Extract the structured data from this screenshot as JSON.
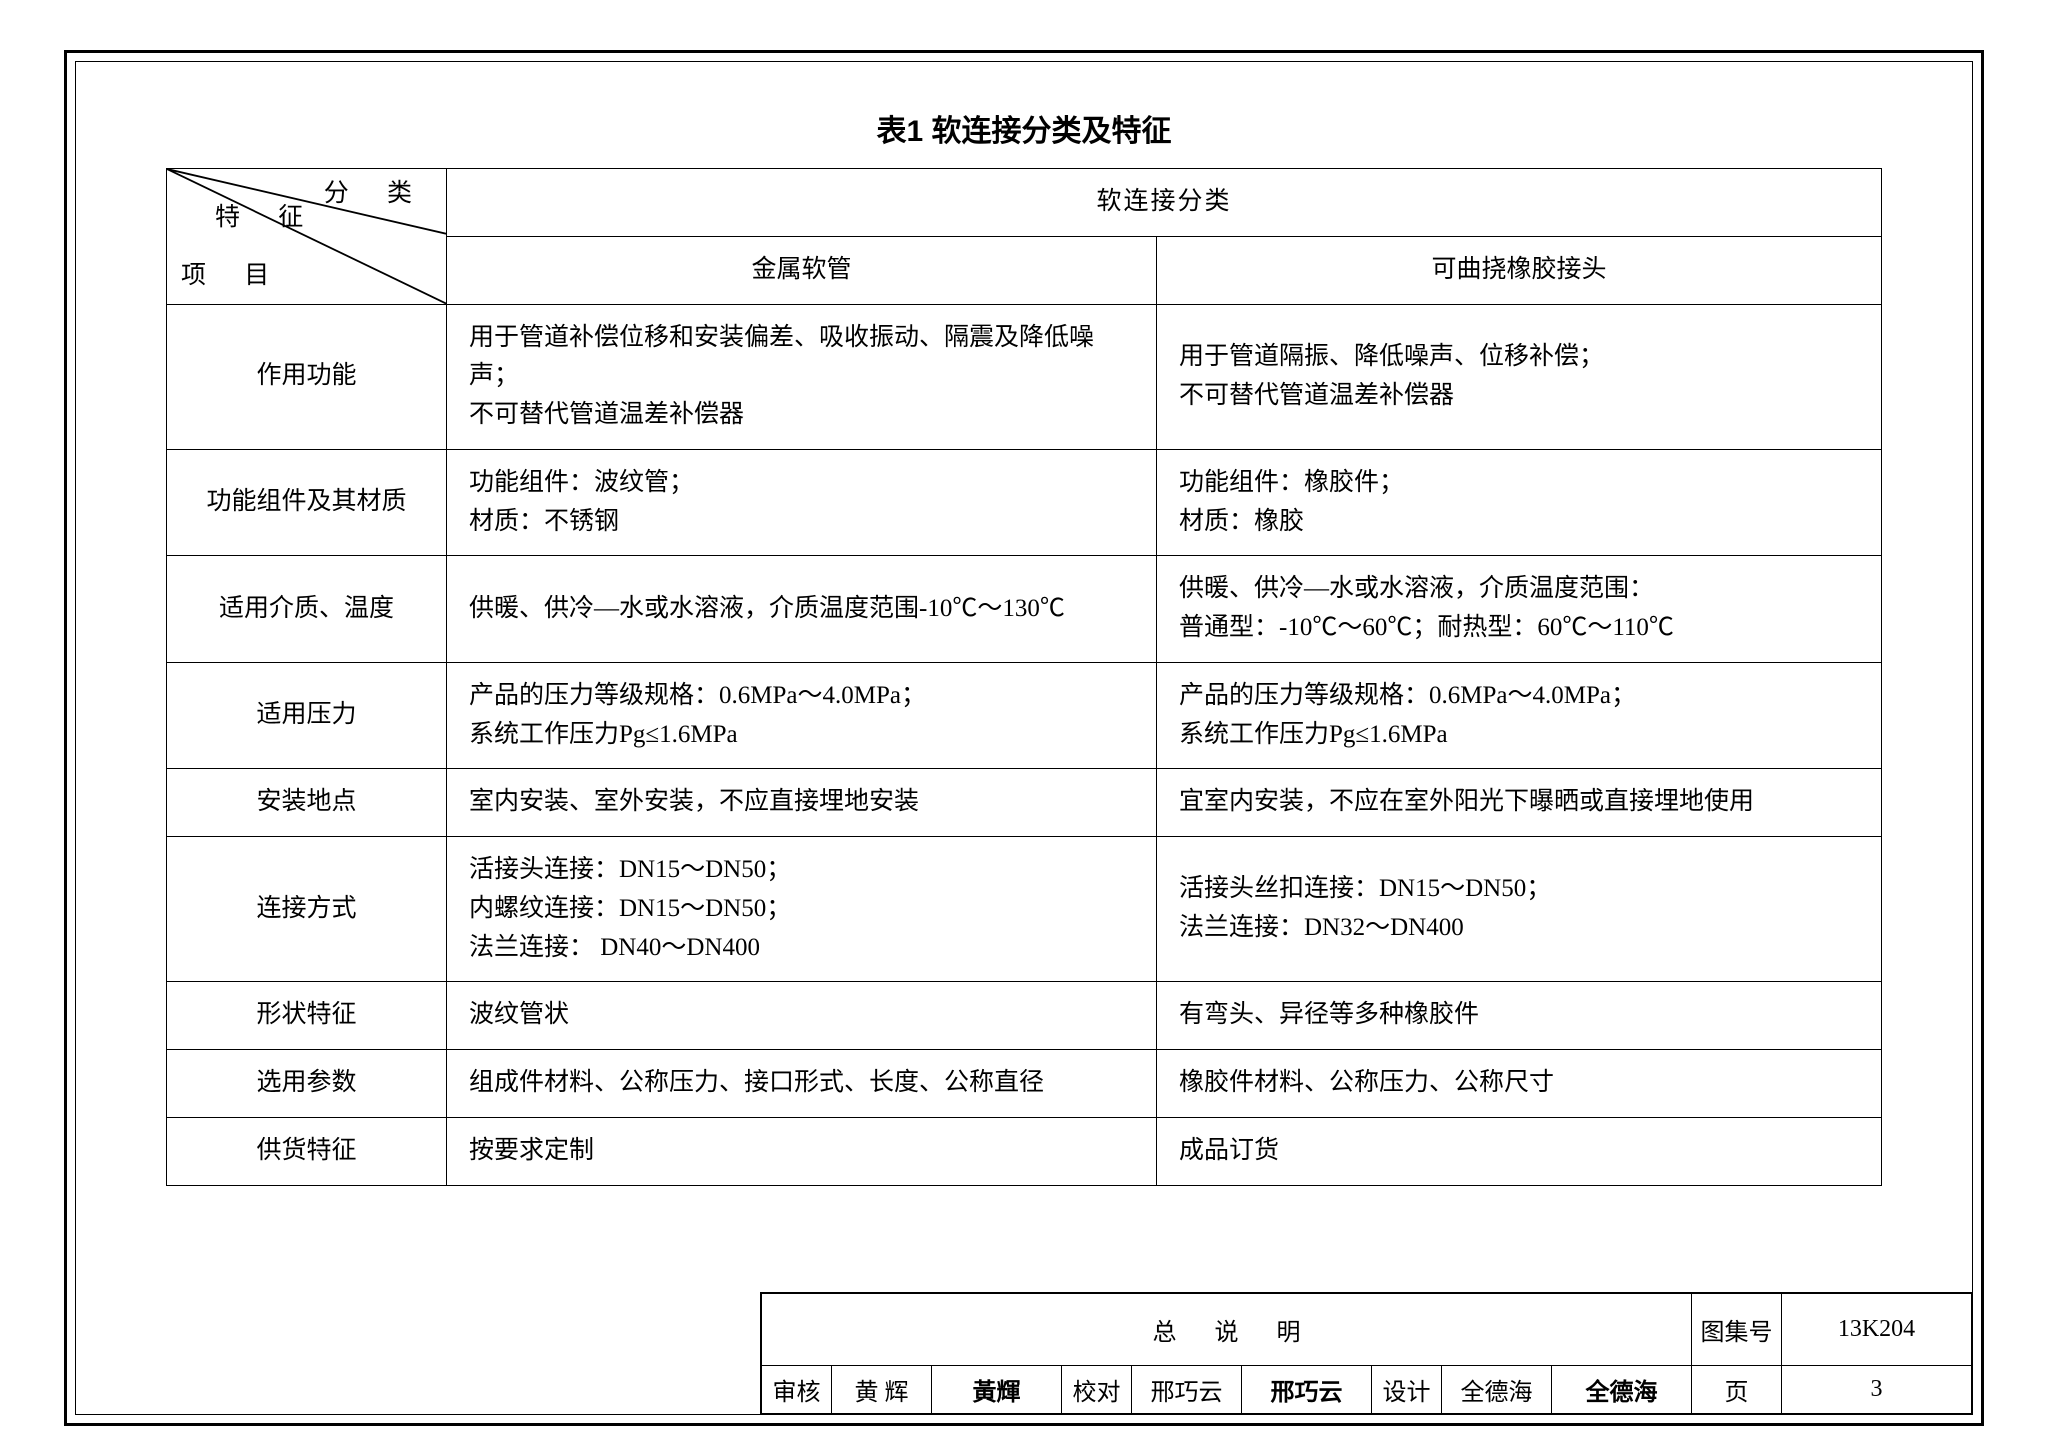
{
  "title": "表1  软连接分类及特征",
  "diagHeader": {
    "top": "分 类",
    "mid": "特 征",
    "bot": "项 目"
  },
  "catHeader": "软连接分类",
  "sub1": "金属软管",
  "sub2": "可曲挠橡胶接头",
  "rows": [
    {
      "label": "作用功能",
      "c1": "用于管道补偿位移和安装偏差、吸收振动、隔震及降低噪声；\n不可替代管道温差补偿器",
      "c2": "用于管道隔振、降低噪声、位移补偿；\n不可替代管道温差补偿器"
    },
    {
      "label": "功能组件及其材质",
      "c1": "功能组件：波纹管；\n材质：不锈钢",
      "c2": "功能组件：橡胶件；\n材质：橡胶"
    },
    {
      "label": "适用介质、温度",
      "c1": "供暖、供冷—水或水溶液，介质温度范围-10℃～130℃",
      "c2": "供暖、供冷—水或水溶液，介质温度范围：\n普通型：-10℃～60℃；耐热型：60℃～110℃"
    },
    {
      "label": "适用压力",
      "c1": "产品的压力等级规格：0.6MPa～4.0MPa；\n系统工作压力Pg≤1.6MPa",
      "c2": "产品的压力等级规格：0.6MPa～4.0MPa；\n系统工作压力Pg≤1.6MPa"
    },
    {
      "label": "安装地点",
      "c1": "室内安装、室外安装，不应直接埋地安装",
      "c2": "宜室内安装，不应在室外阳光下曝晒或直接埋地使用"
    },
    {
      "label": "连接方式",
      "c1": "活接头连接：DN15～DN50；\n内螺纹连接：DN15～DN50；\n法兰连接：  DN40～DN400",
      "c2": "活接头丝扣连接：DN15～DN50；\n法兰连接：DN32～DN400"
    },
    {
      "label": "形状特征",
      "c1": "波纹管状",
      "c2": "有弯头、异径等多种橡胶件"
    },
    {
      "label": "选用参数",
      "c1": "组成件材料、公称压力、接口形式、长度、公称直径",
      "c2": "橡胶件材料、公称压力、公称尺寸"
    },
    {
      "label": "供货特征",
      "c1": "按要求定制",
      "c2": "成品订货"
    }
  ],
  "titleblock": {
    "main": "总说明",
    "setNoLabel": "图集号",
    "setNo": "13K204",
    "reviewLabel": "审核",
    "reviewName": "黄 辉",
    "reviewSig": "黃輝",
    "checkLabel": "校对",
    "checkName": "邢巧云",
    "checkSig": "邢巧云",
    "designLabel": "设计",
    "designName": "全德海",
    "designSig": "全德海",
    "pageLabel": "页",
    "pageNo": "3"
  },
  "colors": {
    "border": "#000000",
    "background": "#ffffff",
    "text": "#000000"
  },
  "colWidths": {
    "c1": 280,
    "c2": 710
  }
}
